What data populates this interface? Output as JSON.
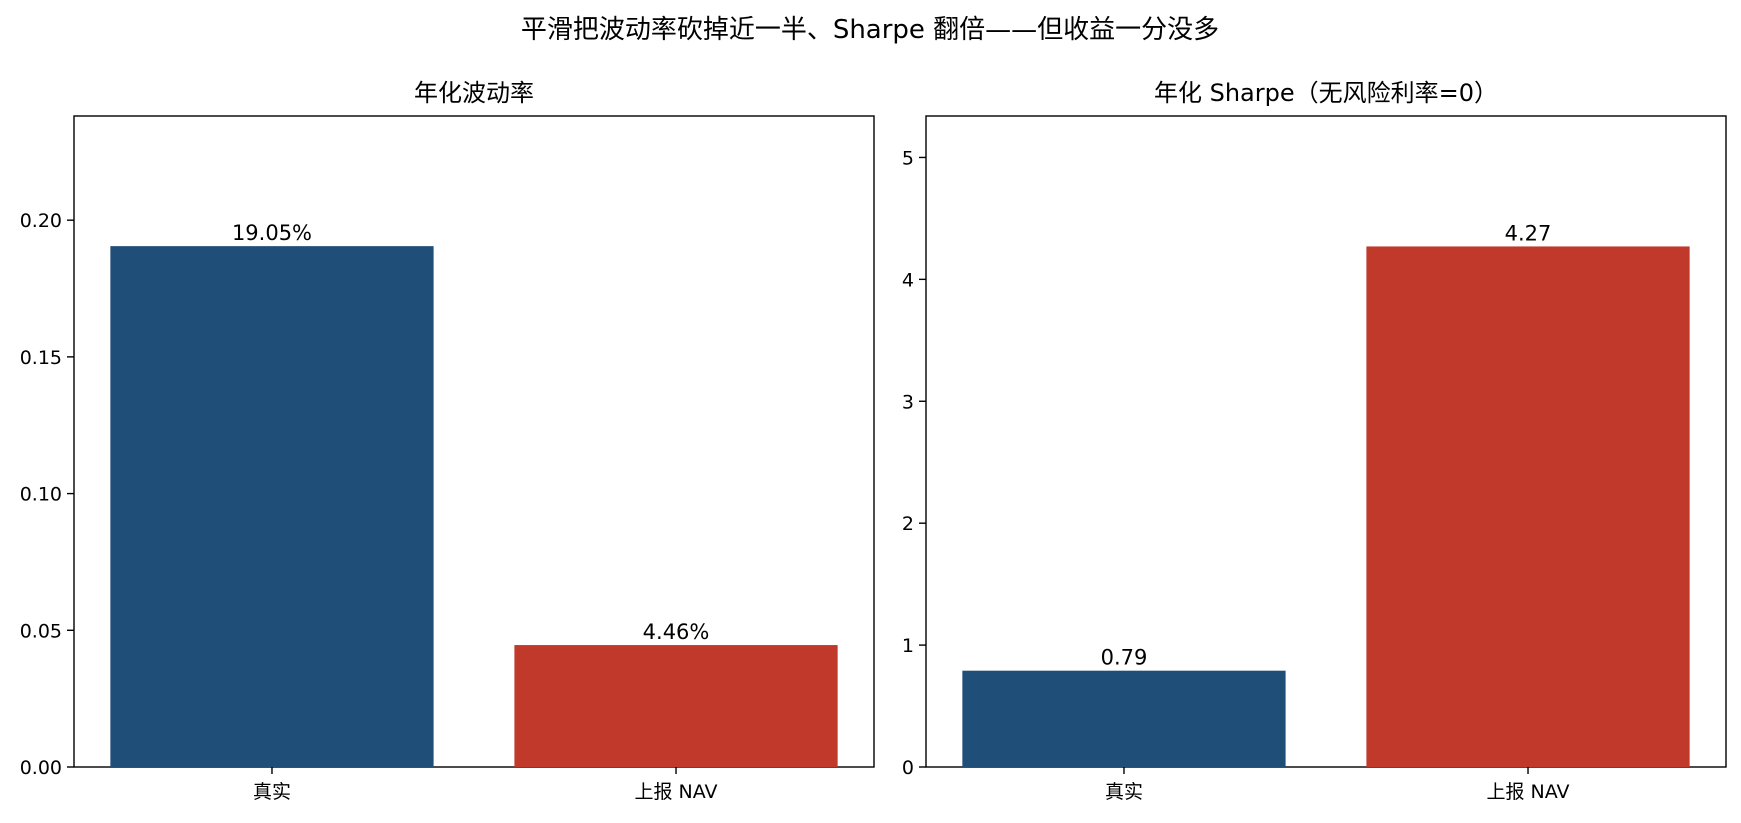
{
  "figure": {
    "suptitle": "平滑把波动率砍掉近一半、Sharpe 翻倍——但收益一分没多"
  },
  "colors": {
    "true": "#1f4e79",
    "reported": "#c0392b"
  },
  "chart_data": [
    {
      "type": "bar",
      "title": "年化波动率",
      "categories": [
        "真实",
        "上报 NAV"
      ],
      "values": [
        0.1905,
        0.0446
      ],
      "bar_labels": [
        "19.05%",
        "4.46%"
      ],
      "bar_colors": [
        "#1f4e79",
        "#c0392b"
      ],
      "xlabel": "",
      "ylabel": "",
      "ylim": [
        0,
        0.2381
      ],
      "yticks": [
        0.0,
        0.05,
        0.1,
        0.15,
        0.2
      ],
      "ytick_labels": [
        "0.00",
        "0.05",
        "0.10",
        "0.15",
        "0.20"
      ],
      "grid": false,
      "legend": "none"
    },
    {
      "type": "bar",
      "title": "年化 Sharpe（无风险利率=0）",
      "categories": [
        "真实",
        "上报 NAV"
      ],
      "values": [
        0.79,
        4.27
      ],
      "bar_labels": [
        "0.79",
        "4.27"
      ],
      "bar_colors": [
        "#1f4e79",
        "#c0392b"
      ],
      "xlabel": "",
      "ylabel": "",
      "ylim": [
        0,
        5.34
      ],
      "yticks": [
        0,
        1,
        2,
        3,
        4,
        5
      ],
      "ytick_labels": [
        "0",
        "1",
        "2",
        "3",
        "4",
        "5"
      ],
      "grid": false,
      "legend": "none"
    }
  ]
}
